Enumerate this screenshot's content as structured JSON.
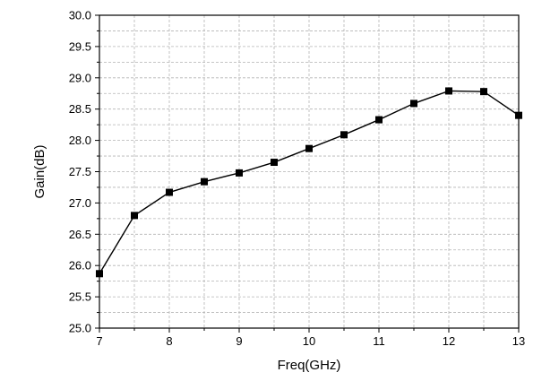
{
  "chart_data": {
    "type": "line",
    "title": "",
    "xlabel": "Freq(GHz)",
    "ylabel": "Gain(dB)",
    "xlim": [
      7,
      13
    ],
    "ylim": [
      25.0,
      30.0
    ],
    "xticks": [
      7,
      8,
      9,
      10,
      11,
      12,
      13
    ],
    "xtick_labels": [
      "7",
      "8",
      "9",
      "10",
      "11",
      "12",
      "13"
    ],
    "yticks": [
      25.0,
      25.5,
      26.0,
      26.5,
      27.0,
      27.5,
      28.0,
      28.5,
      29.0,
      29.5,
      30.0
    ],
    "ytick_labels": [
      "25.0",
      "25.5",
      "26.0",
      "26.5",
      "27.0",
      "27.5",
      "28.0",
      "28.5",
      "29.0",
      "29.5",
      "30.0"
    ],
    "grid": true,
    "grid_style": "dashed",
    "marker": "square",
    "series": [
      {
        "x": [
          7,
          7.5,
          8,
          8.5,
          9,
          9.5,
          10,
          10.5,
          11,
          11.5,
          12,
          12.5,
          13
        ],
        "y": [
          25.87,
          26.8,
          27.17,
          27.34,
          27.48,
          27.65,
          27.87,
          28.09,
          28.33,
          28.59,
          28.79,
          28.78,
          28.4
        ],
        "color": "#000000"
      }
    ]
  }
}
